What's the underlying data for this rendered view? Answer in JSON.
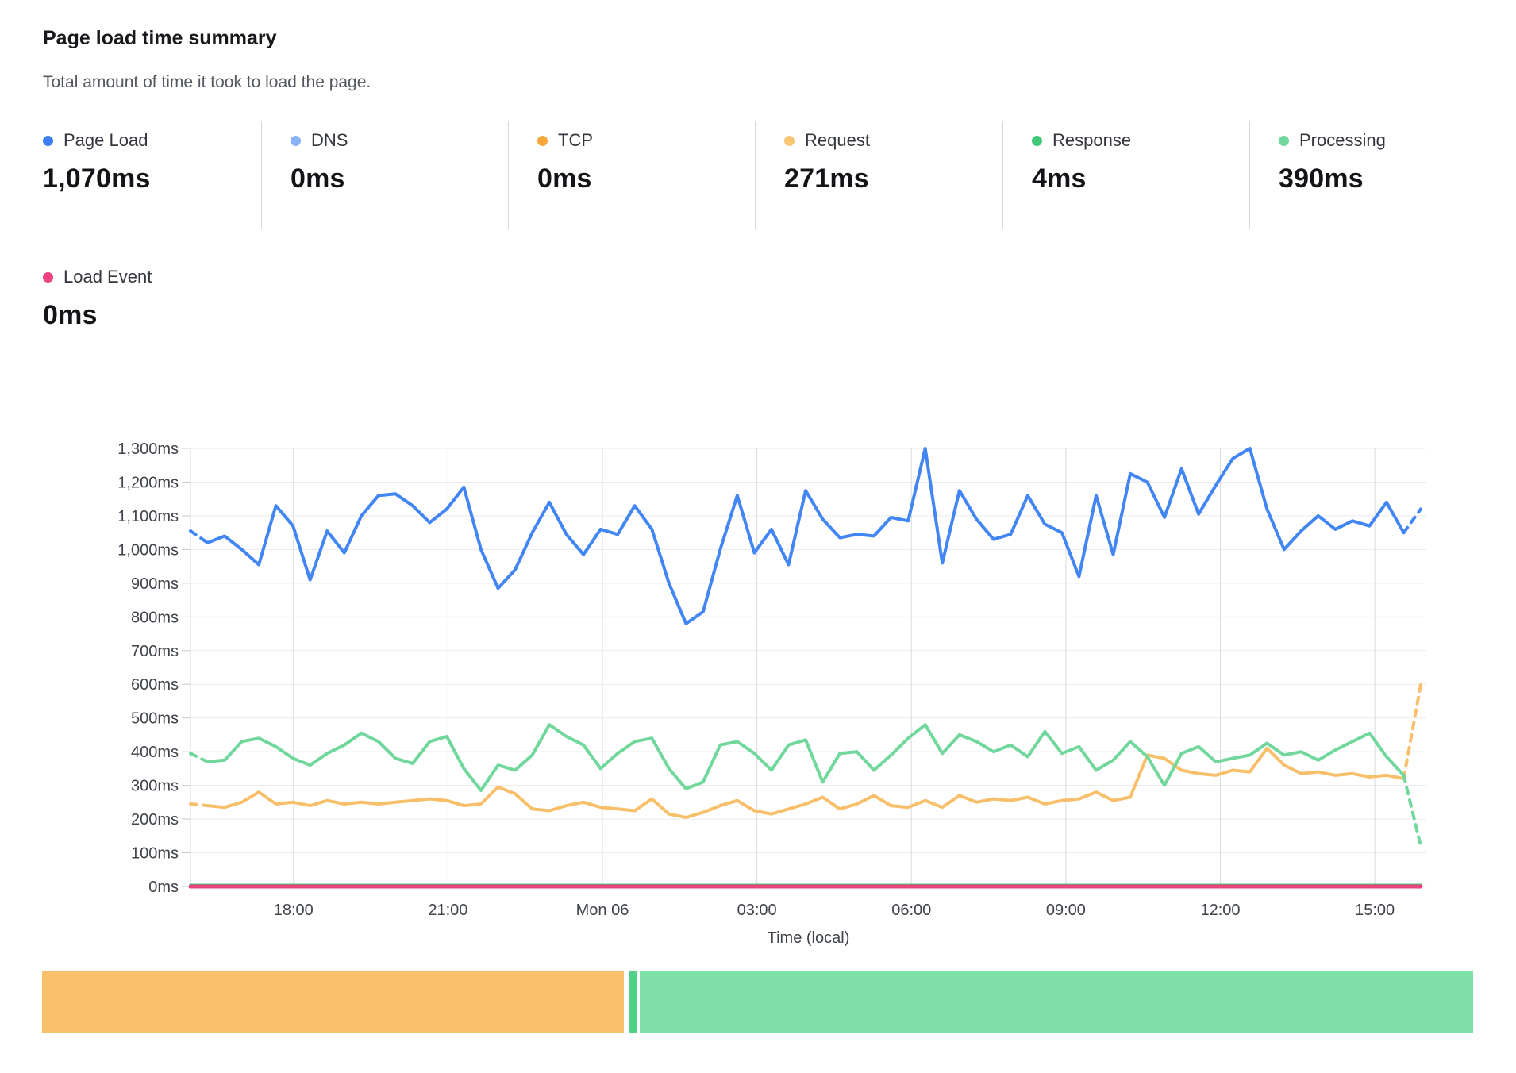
{
  "header": {
    "title": "Page load time summary",
    "subtitle": "Total amount of time it took to load the page."
  },
  "metrics": [
    {
      "label": "Page Load",
      "value": "1,070ms",
      "dot_color": "#3d7ef2"
    },
    {
      "label": "DNS",
      "value": "0ms",
      "dot_color": "#8ab4f8"
    },
    {
      "label": "TCP",
      "value": "0ms",
      "dot_color": "#f5a73b"
    },
    {
      "label": "Request",
      "value": "271ms",
      "dot_color": "#f8c572"
    },
    {
      "label": "Response",
      "value": "4ms",
      "dot_color": "#41c878"
    },
    {
      "label": "Processing",
      "value": "390ms",
      "dot_color": "#72d89d"
    }
  ],
  "load_event": {
    "label": "Load Event",
    "value": "0ms",
    "dot_color": "#ee4380"
  },
  "chart_data": {
    "type": "line",
    "title": "Page load time summary",
    "xlabel": "Time (local)",
    "ylabel": "ms",
    "ylim": [
      0,
      1300
    ],
    "grid": true,
    "legend_position": "top-metric-cards",
    "points_per_series": 73,
    "x_span": "24 hours, ~20-minute sampling, Sun 16:00 to Mon 16:00",
    "x_ticks": [
      "18:00",
      "21:00",
      "Mon 06",
      "03:00",
      "06:00",
      "09:00",
      "12:00",
      "15:00"
    ],
    "y_ticks": [
      "0ms",
      "100ms",
      "200ms",
      "300ms",
      "400ms",
      "500ms",
      "600ms",
      "700ms",
      "800ms",
      "900ms",
      "1,000ms",
      "1,100ms",
      "1,200ms",
      "1,300ms"
    ],
    "series": [
      {
        "name": "DNS",
        "color": "#8ab4f8",
        "width": 2,
        "flat_value": 0
      },
      {
        "name": "TCP",
        "color": "#f5a73b",
        "width": 2,
        "flat_value": 0
      },
      {
        "name": "Response",
        "color": "#41c878",
        "width": 3.5,
        "flat_value": 4
      },
      {
        "name": "Request",
        "color": "#f8bf6b",
        "width": 4,
        "dash_start": true,
        "dash_end": true,
        "values": [
          245,
          240,
          235,
          250,
          280,
          245,
          250,
          240,
          255,
          245,
          250,
          245,
          250,
          255,
          260,
          255,
          240,
          245,
          295,
          275,
          230,
          225,
          240,
          250,
          235,
          230,
          225,
          260,
          215,
          205,
          220,
          240,
          255,
          225,
          215,
          230,
          245,
          265,
          230,
          245,
          270,
          240,
          235,
          255,
          235,
          270,
          250,
          260,
          255,
          265,
          245,
          255,
          260,
          280,
          255,
          265,
          390,
          380,
          345,
          335,
          330,
          345,
          340,
          410,
          360,
          335,
          340,
          330,
          335,
          325,
          330,
          320,
          600
        ]
      },
      {
        "name": "Processing",
        "color": "#71d79c",
        "width": 4,
        "dash_start": true,
        "dash_end": true,
        "values": [
          395,
          370,
          375,
          430,
          440,
          415,
          380,
          360,
          395,
          420,
          455,
          430,
          380,
          365,
          430,
          445,
          350,
          285,
          360,
          345,
          390,
          480,
          445,
          420,
          350,
          395,
          430,
          440,
          350,
          290,
          310,
          420,
          430,
          395,
          345,
          420,
          435,
          310,
          395,
          400,
          345,
          390,
          440,
          480,
          395,
          450,
          430,
          400,
          420,
          385,
          460,
          395,
          415,
          345,
          375,
          430,
          385,
          300,
          395,
          415,
          370,
          380,
          390,
          425,
          390,
          400,
          375,
          405,
          430,
          455,
          385,
          330,
          120
        ]
      },
      {
        "name": "Page Load",
        "color": "#4285f4",
        "width": 4,
        "dash_start": true,
        "dash_end": true,
        "values": [
          1055,
          1020,
          1040,
          1000,
          955,
          1130,
          1070,
          910,
          1055,
          990,
          1100,
          1160,
          1165,
          1130,
          1080,
          1120,
          1185,
          1000,
          885,
          940,
          1050,
          1140,
          1045,
          985,
          1060,
          1045,
          1130,
          1060,
          900,
          780,
          815,
          1000,
          1160,
          990,
          1060,
          955,
          1175,
          1090,
          1035,
          1045,
          1040,
          1095,
          1085,
          1300,
          960,
          1175,
          1090,
          1030,
          1045,
          1160,
          1075,
          1050,
          920,
          1160,
          985,
          1225,
          1200,
          1095,
          1240,
          1105,
          1190,
          1270,
          1300,
          1120,
          1000,
          1055,
          1100,
          1060,
          1085,
          1070,
          1140,
          1050,
          1120
        ]
      },
      {
        "name": "Load Event",
        "color": "#e8437e",
        "width": 5,
        "flat_value": 0
      }
    ]
  },
  "bottom_bar": {
    "segments": [
      {
        "name": "request-share",
        "color": "#f9c06c",
        "from": 0,
        "to": 733
      },
      {
        "name": "divider-sliver",
        "color": "#4fd286",
        "from": 739,
        "to": 749
      },
      {
        "name": "processing-share",
        "color": "#7ee0a6",
        "from": 753,
        "to": 1803
      }
    ]
  }
}
